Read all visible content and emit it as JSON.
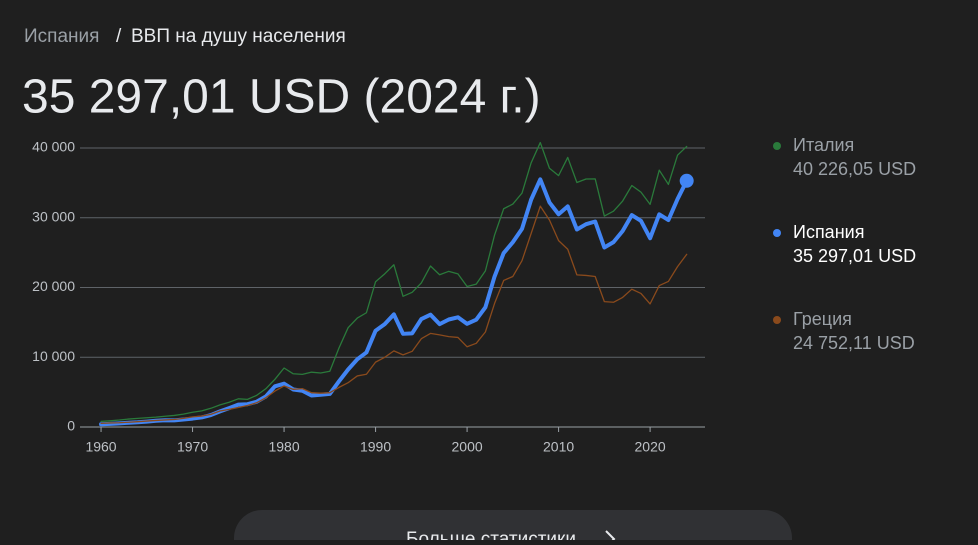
{
  "header": {
    "breadcrumb_country": "Испания",
    "breadcrumb_separator": "/",
    "breadcrumb_topic": "ВВП на душу населения",
    "headline": "35 297,01 USD (2024 г.)"
  },
  "chart_data": {
    "type": "line",
    "x": [
      1960,
      1961,
      1962,
      1963,
      1964,
      1965,
      1966,
      1967,
      1968,
      1969,
      1970,
      1971,
      1972,
      1973,
      1974,
      1975,
      1976,
      1977,
      1978,
      1979,
      1980,
      1981,
      1982,
      1983,
      1984,
      1985,
      1986,
      1987,
      1988,
      1989,
      1990,
      1991,
      1992,
      1993,
      1994,
      1995,
      1996,
      1997,
      1998,
      1999,
      2000,
      2001,
      2002,
      2003,
      2004,
      2005,
      2006,
      2007,
      2008,
      2009,
      2010,
      2011,
      2012,
      2013,
      2014,
      2015,
      2016,
      2017,
      2018,
      2019,
      2020,
      2021,
      2022,
      2023,
      2024
    ],
    "xlim": [
      1957.7,
      2026
    ],
    "xticks": [
      1960,
      1970,
      1980,
      1990,
      2000,
      2010,
      2020
    ],
    "ylim": [
      0,
      40000
    ],
    "yticks": [
      0,
      {
        "value": 10000,
        "label": "10 000"
      },
      {
        "value": 20000,
        "label": "20 000"
      },
      {
        "value": 30000,
        "label": "30 000"
      },
      {
        "value": 40000,
        "label": "40 000"
      }
    ],
    "grid": true,
    "series": [
      {
        "name": "Италия",
        "color": "#2a7a3b",
        "width": 1.3,
        "latest_label": "40 226,05 USD",
        "values": [
          804,
          890,
          1000,
          1140,
          1240,
          1330,
          1420,
          1540,
          1660,
          1840,
          2110,
          2310,
          2680,
          3170,
          3550,
          4040,
          3960,
          4530,
          5480,
          6840,
          8460,
          7630,
          7550,
          7860,
          7740,
          7990,
          11320,
          14240,
          15610,
          16380,
          20830,
          21960,
          23260,
          18740,
          19310,
          20660,
          23080,
          21830,
          22320,
          21960,
          20140,
          20480,
          22380,
          27500,
          31290,
          31960,
          33530,
          37870,
          40780,
          37100,
          36040,
          38650,
          35050,
          35560,
          35570,
          30240,
          30940,
          32400,
          34620,
          33670,
          31920,
          36820,
          34780,
          38970,
          40226.05
        ]
      },
      {
        "name": "Испания",
        "color": "#4285f4",
        "width": 4,
        "latest_label": "35 297,01 USD",
        "highlight": true,
        "values": [
          396,
          450,
          520,
          609,
          675,
          774,
          889,
          968,
          950,
          1078,
          1208,
          1374,
          1709,
          2236,
          2707,
          3208,
          3264,
          3615,
          4366,
          5833,
          6209,
          5378,
          5200,
          4517,
          4618,
          4739,
          6548,
          8243,
          9707,
          10688,
          13805,
          14750,
          16147,
          13360,
          13427,
          15470,
          16102,
          14745,
          15413,
          15729,
          14788,
          15380,
          17157,
          21563,
          24943,
          26496,
          28409,
          32598,
          35510,
          32199,
          30503,
          31636,
          28322,
          29077,
          29462,
          25732,
          26506,
          28101,
          30380,
          29555,
          27063,
          30490,
          29674,
          32677,
          35297.01
        ]
      },
      {
        "name": "Греция",
        "color": "#8a4a1c",
        "width": 1.3,
        "latest_label": "24 752,11 USD",
        "values": [
          520,
          580,
          610,
          680,
          760,
          850,
          940,
          1010,
          1080,
          1240,
          1450,
          1570,
          1810,
          2300,
          2530,
          2800,
          3080,
          3470,
          4190,
          5150,
          5880,
          5400,
          5500,
          4920,
          4850,
          4920,
          5680,
          6350,
          7320,
          7560,
          9300,
          9990,
          10910,
          10340,
          10850,
          12660,
          13420,
          13210,
          12960,
          12840,
          11500,
          12000,
          13620,
          17700,
          21010,
          21580,
          23840,
          27740,
          31660,
          29680,
          26720,
          25480,
          21810,
          21730,
          21580,
          17970,
          17880,
          18580,
          19760,
          19150,
          17650,
          20280,
          20870,
          22990,
          24752.11
        ]
      }
    ]
  },
  "button": {
    "label": "Больше статистики"
  }
}
